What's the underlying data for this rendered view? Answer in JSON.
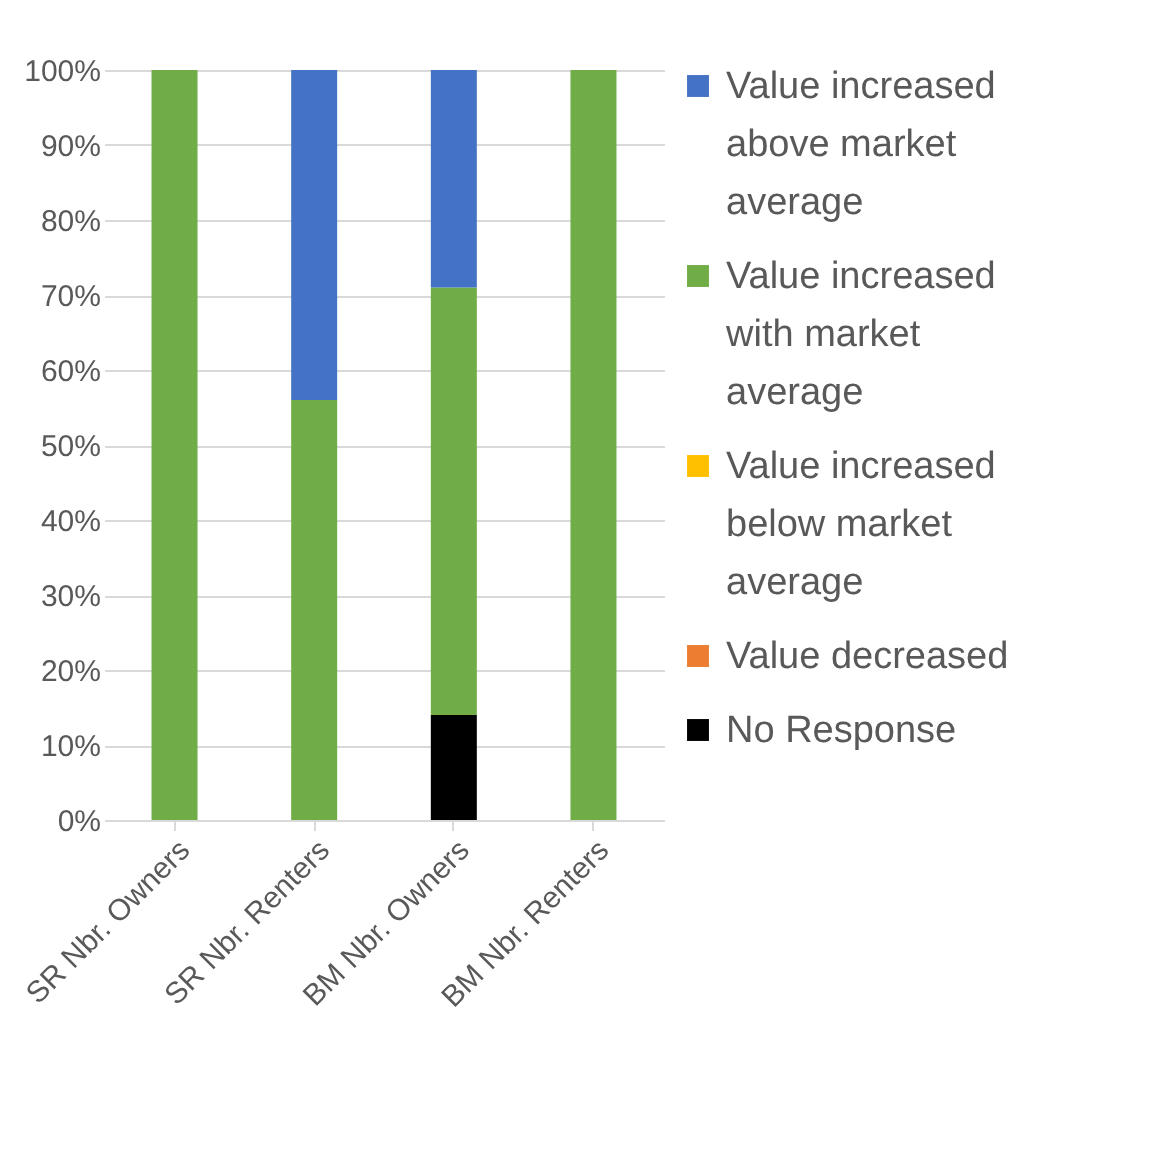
{
  "chart_data": {
    "type": "bar",
    "stacked": true,
    "categories": [
      "SR Nbr. Owners",
      "SR Nbr. Renters",
      "BM Nbr. Owners",
      "BM Nbr. Renters"
    ],
    "series": [
      {
        "name": "No Response",
        "color": "#000000",
        "values": [
          0,
          0,
          14,
          0
        ]
      },
      {
        "name": "Value decreased",
        "color": "#ed7d31",
        "values": [
          0,
          0,
          0,
          0
        ]
      },
      {
        "name": "Value increased below market average",
        "color": "#ffc000",
        "values": [
          0,
          0,
          0,
          0
        ]
      },
      {
        "name": "Value increased with market average",
        "color": "#70ad47",
        "values": [
          100,
          56,
          57,
          100
        ]
      },
      {
        "name": "Value increased above market average",
        "color": "#4472c4",
        "values": [
          0,
          44,
          29,
          0
        ]
      }
    ],
    "ylim": [
      0,
      100
    ],
    "yticks": [
      {
        "value": 0,
        "label": "0%"
      },
      {
        "value": 10,
        "label": "10%"
      },
      {
        "value": 20,
        "label": "20%"
      },
      {
        "value": 30,
        "label": "30%"
      },
      {
        "value": 40,
        "label": "40%"
      },
      {
        "value": 50,
        "label": "50%"
      },
      {
        "value": 60,
        "label": "60%"
      },
      {
        "value": 70,
        "label": "70%"
      },
      {
        "value": 80,
        "label": "80%"
      },
      {
        "value": 90,
        "label": "90%"
      },
      {
        "value": 100,
        "label": "100%"
      }
    ],
    "grid": "y",
    "legend": "right"
  }
}
